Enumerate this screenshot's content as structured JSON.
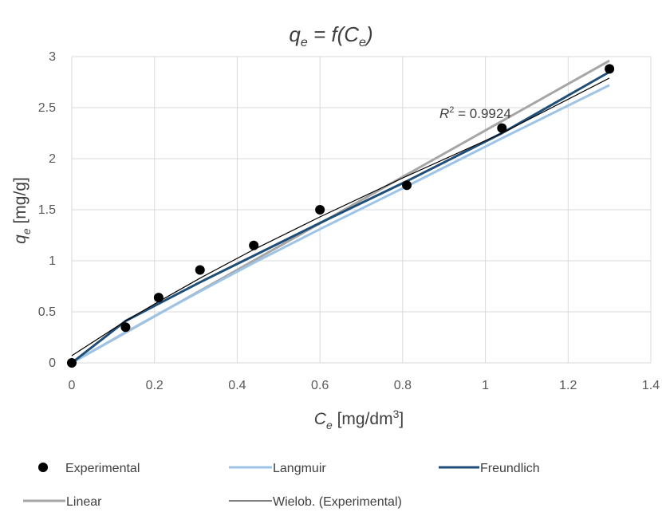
{
  "chart_data": {
    "type": "scatter",
    "title": {
      "main": "q",
      "main_sub": "e",
      "eq": " = f(",
      "arg": "C",
      "arg_sub": "e",
      "close": ")"
    },
    "xlabel": {
      "main": "C",
      "sub": "e",
      "unit": " [mg/dm",
      "sup": "3",
      "close": "]"
    },
    "ylabel": {
      "main": "q",
      "sub": "e",
      "unit": " [mg/g]"
    },
    "xlim": [
      0,
      1.4
    ],
    "ylim": [
      0,
      3
    ],
    "x_ticks": [
      "0",
      "0.2",
      "0.4",
      "0.6",
      "0.8",
      "1",
      "1.2",
      "1.4"
    ],
    "y_ticks": [
      "0",
      "0.5",
      "1",
      "1.5",
      "2",
      "2.5",
      "3"
    ],
    "grid": true,
    "legend_position": "bottom",
    "annotation": {
      "prefix": "R",
      "sup": "2",
      "text": " = 0.9924"
    },
    "series": [
      {
        "name": "Experimental",
        "kind": "points",
        "color": "#000000",
        "x": [
          0,
          0.13,
          0.21,
          0.31,
          0.44,
          0.6,
          0.81,
          1.04,
          1.3
        ],
        "y": [
          0,
          0.35,
          0.64,
          0.91,
          1.15,
          1.5,
          1.74,
          2.3,
          2.88
        ]
      },
      {
        "name": "Langmuir",
        "kind": "line",
        "color": "#9dc3e6",
        "x": [
          0,
          0.13,
          0.21,
          0.31,
          0.44,
          0.6,
          0.81,
          1.04,
          1.3
        ],
        "y": [
          0,
          0.3,
          0.48,
          0.7,
          0.98,
          1.31,
          1.73,
          2.2,
          2.72
        ]
      },
      {
        "name": "Freundlich",
        "kind": "line",
        "color": "#1f4e79",
        "x": [
          0,
          0.13,
          0.21,
          0.31,
          0.44,
          0.6,
          0.81,
          1.04,
          1.3
        ],
        "y": [
          0,
          0.41,
          0.58,
          0.79,
          1.05,
          1.37,
          1.78,
          2.25,
          2.85
        ]
      },
      {
        "name": "Linear",
        "kind": "line",
        "color": "#a6a6a6",
        "x": [
          0,
          1.3
        ],
        "y": [
          0,
          2.96
        ]
      },
      {
        "name": "Wielob. (Experimental)",
        "kind": "line",
        "color": "#000000",
        "x": [
          0,
          0.13,
          0.21,
          0.31,
          0.44,
          0.6,
          0.81,
          1.04,
          1.3
        ],
        "y": [
          0.07,
          0.41,
          0.6,
          0.83,
          1.11,
          1.43,
          1.83,
          2.25,
          2.79
        ]
      }
    ]
  }
}
